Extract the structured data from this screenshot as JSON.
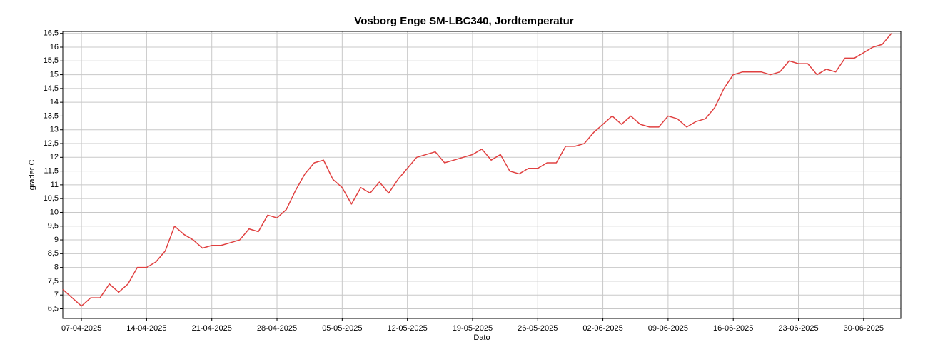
{
  "chart_data": {
    "type": "line",
    "title": "Vosborg Enge SM-LBC340, Jordtemperatur",
    "xlabel": "Dato",
    "ylabel": "grader C",
    "x": [
      "2025-04-05",
      "2025-04-06",
      "2025-04-07",
      "2025-04-08",
      "2025-04-09",
      "2025-04-10",
      "2025-04-11",
      "2025-04-12",
      "2025-04-13",
      "2025-04-14",
      "2025-04-15",
      "2025-04-16",
      "2025-04-17",
      "2025-04-18",
      "2025-04-19",
      "2025-04-20",
      "2025-04-21",
      "2025-04-22",
      "2025-04-23",
      "2025-04-24",
      "2025-04-25",
      "2025-04-26",
      "2025-04-27",
      "2025-04-28",
      "2025-04-29",
      "2025-04-30",
      "2025-05-01",
      "2025-05-02",
      "2025-05-03",
      "2025-05-04",
      "2025-05-05",
      "2025-05-06",
      "2025-05-07",
      "2025-05-08",
      "2025-05-09",
      "2025-05-10",
      "2025-05-11",
      "2025-05-12",
      "2025-05-13",
      "2025-05-14",
      "2025-05-15",
      "2025-05-16",
      "2025-05-17",
      "2025-05-18",
      "2025-05-19",
      "2025-05-20",
      "2025-05-21",
      "2025-05-22",
      "2025-05-23",
      "2025-05-24",
      "2025-05-25",
      "2025-05-26",
      "2025-05-27",
      "2025-05-28",
      "2025-05-29",
      "2025-05-30",
      "2025-05-31",
      "2025-06-01",
      "2025-06-02",
      "2025-06-03",
      "2025-06-04",
      "2025-06-05",
      "2025-06-06",
      "2025-06-07",
      "2025-06-08",
      "2025-06-09",
      "2025-06-10",
      "2025-06-11",
      "2025-06-12",
      "2025-06-13",
      "2025-06-14",
      "2025-06-15",
      "2025-06-16",
      "2025-06-17",
      "2025-06-18",
      "2025-06-19",
      "2025-06-20",
      "2025-06-21",
      "2025-06-22",
      "2025-06-23",
      "2025-06-24",
      "2025-06-25",
      "2025-06-26",
      "2025-06-27",
      "2025-06-28",
      "2025-06-29",
      "2025-06-30",
      "2025-07-01",
      "2025-07-02",
      "2025-07-03"
    ],
    "series": [
      {
        "name": "Jordtemperatur",
        "color": "#e04040",
        "values": [
          7.2,
          6.9,
          6.6,
          6.9,
          6.9,
          7.4,
          7.1,
          7.4,
          8.0,
          8.0,
          8.2,
          8.6,
          9.5,
          9.2,
          9.0,
          8.7,
          8.8,
          8.8,
          8.9,
          9.0,
          9.4,
          9.3,
          9.9,
          9.8,
          10.1,
          10.8,
          11.4,
          11.8,
          11.9,
          11.2,
          10.9,
          10.3,
          10.9,
          10.7,
          11.1,
          10.7,
          11.2,
          11.6,
          12.0,
          12.1,
          12.2,
          11.8,
          11.9,
          12.0,
          12.1,
          12.3,
          11.9,
          12.1,
          11.5,
          11.4,
          11.6,
          11.6,
          11.8,
          11.8,
          12.4,
          12.4,
          12.5,
          12.9,
          13.2,
          13.5,
          13.2,
          13.5,
          13.2,
          13.1,
          13.1,
          13.5,
          13.4,
          13.1,
          13.3,
          13.4,
          13.8,
          14.5,
          15.0,
          15.1,
          15.1,
          15.1,
          15.0,
          15.1,
          15.5,
          15.4,
          15.4,
          15.0,
          15.2,
          15.1,
          15.6,
          15.6,
          15.8,
          16.0,
          16.1,
          16.5
        ]
      }
    ],
    "xlim": [
      "2025-04-05",
      "2025-07-04"
    ],
    "xticks": [
      {
        "value": "2025-04-07",
        "label": "07-04-2025"
      },
      {
        "value": "2025-04-14",
        "label": "14-04-2025"
      },
      {
        "value": "2025-04-21",
        "label": "21-04-2025"
      },
      {
        "value": "2025-04-28",
        "label": "28-04-2025"
      },
      {
        "value": "2025-05-05",
        "label": "05-05-2025"
      },
      {
        "value": "2025-05-12",
        "label": "12-05-2025"
      },
      {
        "value": "2025-05-19",
        "label": "19-05-2025"
      },
      {
        "value": "2025-05-26",
        "label": "26-05-2025"
      },
      {
        "value": "2025-06-02",
        "label": "02-06-2025"
      },
      {
        "value": "2025-06-09",
        "label": "09-06-2025"
      },
      {
        "value": "2025-06-16",
        "label": "16-06-2025"
      },
      {
        "value": "2025-06-23",
        "label": "23-06-2025"
      },
      {
        "value": "2025-06-30",
        "label": "30-06-2025"
      }
    ],
    "ylim": [
      6.15,
      16.57
    ],
    "yticks": [
      {
        "value": 6.5,
        "label": "6,5"
      },
      7,
      {
        "value": 7.5,
        "label": "7,5"
      },
      8,
      {
        "value": 8.5,
        "label": "8,5"
      },
      9,
      {
        "value": 9.5,
        "label": "9,5"
      },
      10,
      {
        "value": 10.5,
        "label": "10,5"
      },
      11,
      {
        "value": 11.5,
        "label": "11,5"
      },
      12,
      {
        "value": 12.5,
        "label": "12,5"
      },
      13,
      {
        "value": 13.5,
        "label": "13,5"
      },
      14,
      {
        "value": 14.5,
        "label": "14,5"
      },
      15,
      {
        "value": 15.5,
        "label": "15,5"
      },
      16,
      {
        "value": 16.5,
        "label": "16,5"
      }
    ],
    "grid": true
  }
}
